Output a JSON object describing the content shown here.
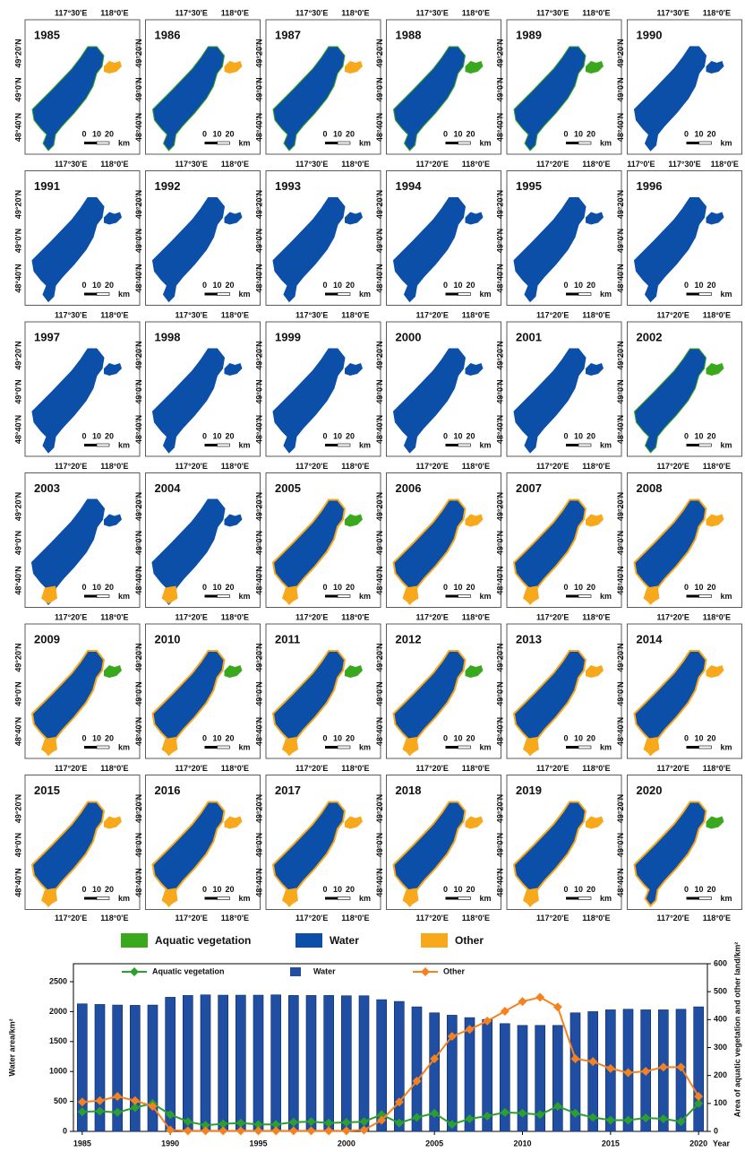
{
  "maps": {
    "panels": [
      {
        "year": "1985",
        "lon": [
          "117°30'E",
          "118°0'E"
        ],
        "lat": [
          "49°20'N",
          "49°0'N",
          "48°40'N"
        ],
        "scale": [
          "0",
          "10",
          "20",
          "km"
        ]
      },
      {
        "year": "1986",
        "lon": [
          "117°30'E",
          "118°0'E"
        ],
        "lat": [
          "49°20'N",
          "49°0'N",
          "48°40'N"
        ],
        "scale": [
          "0",
          "10",
          "20",
          "km"
        ]
      },
      {
        "year": "1987",
        "lon": [
          "117°30'E",
          "118°0'E"
        ],
        "lat": [
          "49°20'N",
          "49°0'N",
          "48°40'N"
        ],
        "scale": [
          "0",
          "10",
          "20",
          "km"
        ]
      },
      {
        "year": "1988",
        "lon": [
          "117°30'E",
          "118°0'E"
        ],
        "lat": [
          "49°20'N",
          "49°0'N",
          "48°40'N"
        ],
        "scale": [
          "0",
          "10",
          "20",
          "km"
        ]
      },
      {
        "year": "1989",
        "lon": [
          "117°30'E",
          "118°0'E"
        ],
        "lat": [
          "49°20'N",
          "49°0'N",
          "48°40'N"
        ],
        "scale": [
          "0",
          "10",
          "20",
          "km"
        ]
      },
      {
        "year": "1990",
        "lon": [
          "117°30'E",
          "118°0'E"
        ],
        "lat": [
          "49°20'N",
          "49°0'N",
          "48°40'N"
        ],
        "scale": [
          "0",
          "10",
          "20",
          "km"
        ]
      },
      {
        "year": "1991",
        "lon": [
          "117°30'E",
          "118°0'E"
        ],
        "lat": [
          "49°20'N",
          "49°0'N",
          "48°40'N"
        ],
        "scale": [
          "0",
          "10",
          "20",
          "km"
        ]
      },
      {
        "year": "1992",
        "lon": [
          "117°30'E",
          "118°0'E"
        ],
        "lat": [
          "49°20'N",
          "49°0'N",
          "48°40'N"
        ],
        "scale": [
          "0",
          "10",
          "20",
          "km"
        ]
      },
      {
        "year": "1993",
        "lon": [
          "117°30'E",
          "118°0'E"
        ],
        "lat": [
          "49°20'N",
          "49°0'N",
          "48°40'N"
        ],
        "scale": [
          "0",
          "10",
          "20",
          "km"
        ]
      },
      {
        "year": "1994",
        "lon": [
          "117°20'E",
          "118°0'E"
        ],
        "lat": [
          "49°20'N",
          "49°0'N",
          "48°40'N"
        ],
        "scale": [
          "0",
          "10",
          "20",
          "km"
        ]
      },
      {
        "year": "1995",
        "lon": [
          "117°20'E",
          "118°0'E"
        ],
        "lat": [
          "49°20'N",
          "49°0'N",
          "48°40'N"
        ],
        "scale": [
          "0",
          "10",
          "20",
          "km"
        ]
      },
      {
        "year": "1996",
        "lon": [
          "117°0'E",
          "117°30'E",
          "118°0'E"
        ],
        "lat": [
          "49°20'N",
          "49°0'N",
          "48°40'N"
        ],
        "scale": [
          "0",
          "10",
          "20",
          "km"
        ]
      },
      {
        "year": "1997",
        "lon": [
          "117°30'E",
          "118°0'E"
        ],
        "lat": [
          "49°20'N",
          "49°0'N",
          "48°40'N"
        ],
        "scale": [
          "0",
          "10",
          "20",
          "km"
        ]
      },
      {
        "year": "1998",
        "lon": [
          "117°30'E",
          "118°0'E"
        ],
        "lat": [
          "49°20'N",
          "49°0'N",
          "48°40'N"
        ],
        "scale": [
          "0",
          "10",
          "20",
          "km"
        ]
      },
      {
        "year": "1999",
        "lon": [
          "117°30'E",
          "118°0'E"
        ],
        "lat": [
          "49°20'N",
          "49°0'N",
          "48°40'N"
        ],
        "scale": [
          "0",
          "10",
          "20",
          "km"
        ]
      },
      {
        "year": "2000",
        "lon": [
          "117°20'E",
          "118°0'E"
        ],
        "lat": [
          "49°20'N",
          "49°0'N",
          "48°40'N"
        ],
        "scale": [
          "0",
          "10",
          "20",
          "km"
        ]
      },
      {
        "year": "2001",
        "lon": [
          "117°20'E",
          "118°0'E"
        ],
        "lat": [
          "49°20'N",
          "49°0'N",
          "48°40'N"
        ],
        "scale": [
          "0",
          "10",
          "20",
          "km"
        ]
      },
      {
        "year": "2002",
        "lon": [
          "117°20'E",
          "118°0'E"
        ],
        "lat": [
          "49°20'N",
          "49°0'N",
          "48°40'N"
        ],
        "scale": [
          "0",
          "10",
          "20",
          "km"
        ]
      },
      {
        "year": "2003",
        "lon": [
          "117°20'E",
          "118°0'E"
        ],
        "lat": [
          "49°20'N",
          "49°0'N",
          "48°40'N"
        ],
        "scale": [
          "0",
          "10",
          "20",
          "km"
        ]
      },
      {
        "year": "2004",
        "lon": [
          "117°20'E",
          "118°0'E"
        ],
        "lat": [
          "49°20'N",
          "49°0'N",
          "48°40'N"
        ],
        "scale": [
          "0",
          "10",
          "20",
          "km"
        ]
      },
      {
        "year": "2005",
        "lon": [
          "117°20'E",
          "118°0'E"
        ],
        "lat": [
          "49°20'N",
          "49°0'N",
          "48°40'N"
        ],
        "scale": [
          "0",
          "10",
          "20",
          "km"
        ]
      },
      {
        "year": "2006",
        "lon": [
          "117°20'E",
          "118°0'E"
        ],
        "lat": [
          "49°20'N",
          "49°0'N",
          "48°40'N"
        ],
        "scale": [
          "0",
          "10",
          "20",
          "km"
        ]
      },
      {
        "year": "2007",
        "lon": [
          "117°20'E",
          "118°0'E"
        ],
        "lat": [
          "49°20'N",
          "49°0'N",
          "48°40'N"
        ],
        "scale": [
          "0",
          "10",
          "20",
          "km"
        ]
      },
      {
        "year": "2008",
        "lon": [
          "117°20'E",
          "118°0'E"
        ],
        "lat": [
          "49°20'N",
          "49°0'N",
          "48°40'N"
        ],
        "scale": [
          "0",
          "10",
          "20",
          "km"
        ]
      },
      {
        "year": "2009",
        "lon": [
          "117°20'E",
          "118°0'E"
        ],
        "lat": [
          "49°20'N",
          "49°0'N",
          "48°40'N"
        ],
        "scale": [
          "0",
          "10",
          "20",
          "km"
        ]
      },
      {
        "year": "2010",
        "lon": [
          "117°20'E",
          "118°0'E"
        ],
        "lat": [
          "49°20'N",
          "49°0'N",
          "48°40'N"
        ],
        "scale": [
          "0",
          "10",
          "20",
          "km"
        ]
      },
      {
        "year": "2011",
        "lon": [
          "117°20'E",
          "118°0'E"
        ],
        "lat": [
          "49°20'N",
          "49°0'N",
          "48°40'N"
        ],
        "scale": [
          "0",
          "10",
          "20",
          "km"
        ]
      },
      {
        "year": "2012",
        "lon": [
          "117°20'E",
          "118°0'E"
        ],
        "lat": [
          "49°20'N",
          "49°0'N",
          "48°40'N"
        ],
        "scale": [
          "0",
          "10",
          "20",
          "km"
        ]
      },
      {
        "year": "2013",
        "lon": [
          "117°20'E",
          "118°0'E"
        ],
        "lat": [
          "49°20'N",
          "49°0'N",
          "48°40'N"
        ],
        "scale": [
          "0",
          "10",
          "20",
          "km"
        ]
      },
      {
        "year": "2014",
        "lon": [
          "117°20'E",
          "118°0'E"
        ],
        "lat": [
          "49°20'N",
          "49°0'N",
          "48°40'N"
        ],
        "scale": [
          "0",
          "10",
          "20",
          "km"
        ]
      },
      {
        "year": "2015",
        "lon": [
          "117°20'E",
          "118°0'E"
        ],
        "lat": [
          "49°20'N",
          "49°0'N",
          "48°40'N"
        ],
        "scale": [
          "0",
          "10",
          "20",
          "km"
        ]
      },
      {
        "year": "2016",
        "lon": [
          "117°20'E",
          "118°0'E"
        ],
        "lat": [
          "49°20'N",
          "49°0'N",
          "48°40'N"
        ],
        "scale": [
          "0",
          "10",
          "20",
          "km"
        ]
      },
      {
        "year": "2017",
        "lon": [
          "117°20'E",
          "118°0'E"
        ],
        "lat": [
          "49°20'N",
          "49°0'N",
          "48°40'N"
        ],
        "scale": [
          "0",
          "10",
          "20",
          "km"
        ]
      },
      {
        "year": "2018",
        "lon": [
          "117°20'E",
          "118°0'E"
        ],
        "lat": [
          "49°20'N",
          "49°0'N",
          "48°40'N"
        ],
        "scale": [
          "0",
          "10",
          "20",
          "km"
        ]
      },
      {
        "year": "2019",
        "lon": [
          "117°20'E",
          "118°0'E"
        ],
        "lat": [
          "49°20'N",
          "49°0'N",
          "48°40'N"
        ],
        "scale": [
          "0",
          "10",
          "20",
          "km"
        ]
      },
      {
        "year": "2020",
        "lon": [
          "117°20'E",
          "118°0'E"
        ],
        "lat": [
          "49°20'N",
          "49°0'N",
          "48°40'N"
        ],
        "scale": [
          "0",
          "10",
          "20",
          "km"
        ]
      }
    ],
    "bottom_lon": [
      [
        "117°20'E",
        "118°0'E"
      ],
      [
        "117°20'E",
        "118°0'E"
      ],
      [
        "117°20'E",
        "118°0'E"
      ],
      [
        "117°20'E",
        "118°0'E"
      ],
      [
        "117°20'E",
        "118°0'E"
      ],
      [
        "117°20'E",
        "118°0'E"
      ]
    ]
  },
  "map_legend": [
    {
      "name": "Aquatic vegetation",
      "color": "#3aa81c"
    },
    {
      "name": "Water",
      "color": "#0b4fa8"
    },
    {
      "name": "Other",
      "color": "#f7a81b"
    }
  ],
  "chart_data": {
    "type": "bar",
    "x_label": "Year",
    "y_label": "Water area/km²",
    "y2_label": "Area of aquatic vegetation and other land/km²",
    "x": [
      1985,
      1986,
      1987,
      1988,
      1989,
      1990,
      1991,
      1992,
      1993,
      1994,
      1995,
      1996,
      1997,
      1998,
      1999,
      2000,
      2001,
      2002,
      2003,
      2004,
      2005,
      2006,
      2007,
      2008,
      2009,
      2010,
      2011,
      2012,
      2013,
      2014,
      2015,
      2016,
      2017,
      2018,
      2019,
      2020
    ],
    "xlim": [
      1984.5,
      2020.5
    ],
    "xticks": [
      1985,
      1990,
      1995,
      2000,
      2005,
      2010,
      2015,
      2020
    ],
    "ylim": [
      0,
      2800
    ],
    "yticks": [
      0,
      500,
      1000,
      1500,
      2000,
      2500
    ],
    "y2lim": [
      0,
      600
    ],
    "y2ticks": [
      0,
      100,
      200,
      300,
      400,
      500,
      600
    ],
    "series": [
      {
        "name": "Aquatic vegetation",
        "type": "line",
        "axis": "y2",
        "color": "#2ca02c",
        "values": [
          70,
          72,
          68,
          85,
          100,
          60,
          35,
          22,
          27,
          30,
          25,
          25,
          33,
          35,
          30,
          32,
          35,
          60,
          30,
          50,
          65,
          25,
          45,
          55,
          68,
          65,
          60,
          90,
          65,
          50,
          40,
          40,
          48,
          45,
          35,
          100
        ]
      },
      {
        "name": "Water",
        "type": "bar",
        "color": "#1f4ea3",
        "values": [
          2130,
          2120,
          2110,
          2105,
          2110,
          2240,
          2270,
          2280,
          2275,
          2275,
          2275,
          2280,
          2270,
          2270,
          2270,
          2265,
          2265,
          2200,
          2170,
          2080,
          1980,
          1940,
          1900,
          1870,
          1800,
          1770,
          1770,
          1770,
          1980,
          2000,
          2030,
          2040,
          2030,
          2030,
          2040,
          2080
        ]
      },
      {
        "name": "Other",
        "type": "line",
        "axis": "y2",
        "color": "#f5821f",
        "values": [
          105,
          110,
          125,
          110,
          90,
          5,
          2,
          2,
          2,
          2,
          2,
          2,
          2,
          2,
          2,
          2,
          5,
          40,
          105,
          180,
          260,
          340,
          365,
          395,
          430,
          465,
          480,
          445,
          260,
          250,
          225,
          210,
          215,
          230,
          230,
          125
        ]
      }
    ]
  }
}
